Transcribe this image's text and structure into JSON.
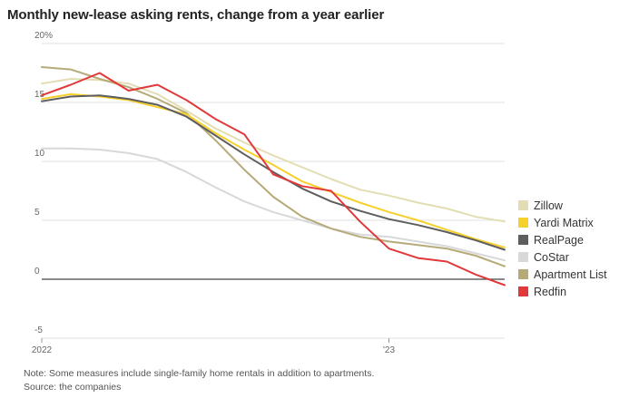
{
  "title": "Monthly new-lease asking rents, change from a year earlier",
  "notes": {
    "note": "Note: Some measures include single-family home rentals in addition to apartments.",
    "source": "Source: the companies"
  },
  "chart_data": {
    "type": "line",
    "title": "Monthly new-lease asking rents, change from a year earlier",
    "xlabel": "",
    "ylabel": "",
    "x": [
      "2022-01",
      "2022-02",
      "2022-03",
      "2022-04",
      "2022-05",
      "2022-06",
      "2022-07",
      "2022-08",
      "2022-09",
      "2022-10",
      "2022-11",
      "2022-12",
      "2023-01",
      "2023-02",
      "2023-03",
      "2023-04",
      "2023-05"
    ],
    "x_tick_labels": [
      {
        "x": "2022-01",
        "label": "2022"
      },
      {
        "x": "2023-01",
        "label": "'23"
      }
    ],
    "y_ticks": [
      -5,
      0,
      5,
      10,
      15,
      20
    ],
    "y_tick_labels": [
      "-5",
      "0",
      "5",
      "10",
      "15",
      "20%"
    ],
    "ylim": [
      -5,
      20
    ],
    "grid": true,
    "legend_position": "right",
    "series": [
      {
        "name": "Zillow",
        "color": "#e3ddb3",
        "values": [
          16.6,
          17.0,
          16.9,
          16.6,
          15.7,
          14.3,
          12.8,
          11.6,
          10.5,
          9.5,
          8.5,
          7.6,
          7.1,
          6.5,
          6.0,
          5.3,
          4.9
        ]
      },
      {
        "name": "Yardi Matrix",
        "color": "#f6d12c",
        "values": [
          15.3,
          15.7,
          15.5,
          15.2,
          14.6,
          14.0,
          12.4,
          11.0,
          9.7,
          8.3,
          7.4,
          6.5,
          5.7,
          5.0,
          4.2,
          3.4,
          2.7
        ]
      },
      {
        "name": "RealPage",
        "color": "#5e5e5e",
        "values": [
          15.1,
          15.5,
          15.6,
          15.3,
          14.8,
          13.8,
          12.2,
          10.6,
          9.1,
          7.7,
          6.6,
          5.8,
          5.1,
          4.6,
          4.0,
          3.3,
          2.5
        ]
      },
      {
        "name": "CoStar",
        "color": "#d8d8d8",
        "values": [
          11.1,
          11.1,
          11.0,
          10.7,
          10.2,
          9.1,
          7.8,
          6.6,
          5.7,
          5.0,
          4.3,
          3.8,
          3.6,
          3.2,
          2.8,
          2.2,
          1.6
        ]
      },
      {
        "name": "Apartment List",
        "color": "#b6ab78",
        "values": [
          18.0,
          17.8,
          17.0,
          16.3,
          15.3,
          14.1,
          11.8,
          9.3,
          7.0,
          5.3,
          4.3,
          3.6,
          3.2,
          2.9,
          2.6,
          2.0,
          1.1
        ]
      },
      {
        "name": "Redfin",
        "color": "#e1393b",
        "values": [
          15.6,
          16.5,
          17.5,
          16.0,
          16.5,
          15.2,
          13.6,
          12.3,
          8.9,
          7.9,
          7.5,
          4.9,
          2.6,
          1.8,
          1.5,
          0.4,
          -0.5
        ]
      }
    ]
  }
}
